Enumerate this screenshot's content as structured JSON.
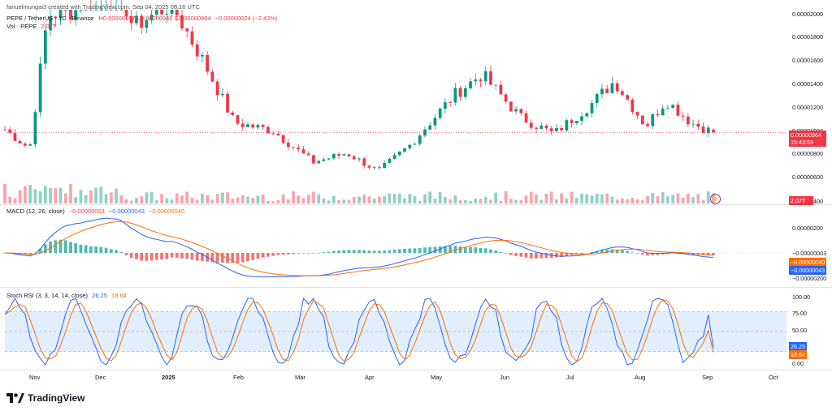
{
  "header": {
    "creator": "fanuelmungai3 created with TradingView.com, Sep 04, 2025 08:16 UTC",
    "symbol": "PEPE / TetherUS · 1D · Binance",
    "ohlc": "H0.00000997 L0.00000946 C0.00000964",
    "change": "−0.00000024 (−2.43%)",
    "volume_label": "Vol · PEPE",
    "volume_value": "2.07T"
  },
  "macd": {
    "label": "MACD (12, 26, close)",
    "hist": "−0.00000003",
    "macd": "−0.00000043",
    "signal": "−0.00000040"
  },
  "stoch": {
    "label": "Stoch RSI (3, 3, 14, 14, close)",
    "k": "26.25",
    "d": "18.64"
  },
  "price_axis": [
    "0.00002000",
    "0.00001800",
    "0.00001600",
    "0.00001400",
    "0.00001200",
    "0.00001000",
    "0.00000800",
    "0.00000600",
    "0.00000400"
  ],
  "price_tag": {
    "price": "0.00000964",
    "countdown": "15:43:59",
    "volume": "2.07T"
  },
  "macd_axis": [
    "0.00000200",
    "−0.00000003",
    "−0.00000040",
    "−0.00000043",
    "−0.00000200"
  ],
  "stoch_axis": [
    "100.00",
    "75.00",
    "50.00",
    "26.25",
    "18.64",
    "0.00"
  ],
  "time_axis": [
    "Nov",
    "Dec",
    "2025",
    "Feb",
    "Mar",
    "Apr",
    "May",
    "Jun",
    "Jul",
    "Aug",
    "Sep",
    "Oct"
  ],
  "brand": "TradingView",
  "colors": {
    "up": "#089981",
    "down": "#f23645",
    "macd": "#2962ff",
    "signal": "#ff6d00",
    "stoch_band": "#e3eefc"
  },
  "chart_data": {
    "type": "candlestick",
    "approx_close_path": [
      [
        "2024-10-24",
        9.9e-06
      ],
      [
        "2024-11-04",
        8.2e-06
      ],
      [
        "2024-11-12",
        2e-05
      ],
      [
        "2024-11-25",
        2.05e-05
      ],
      [
        "2024-12-09",
        2.5e-05
      ],
      [
        "2024-12-20",
        1.9e-05
      ],
      [
        "2025-01-06",
        2.1e-05
      ],
      [
        "2025-01-20",
        1.6e-05
      ],
      [
        "2025-02-03",
        1.05e-05
      ],
      [
        "2025-02-20",
        9.8e-06
      ],
      [
        "2025-03-10",
        7e-06
      ],
      [
        "2025-03-25",
        7.8e-06
      ],
      [
        "2025-04-08",
        6.2e-06
      ],
      [
        "2025-04-22",
        8.5e-06
      ],
      [
        "2025-05-12",
        1.3e-05
      ],
      [
        "2025-05-24",
        1.48e-05
      ],
      [
        "2025-06-10",
        1.1e-05
      ],
      [
        "2025-06-25",
        9.5e-06
      ],
      [
        "2025-07-12",
        1.22e-05
      ],
      [
        "2025-07-22",
        1.42e-05
      ],
      [
        "2025-08-05",
        1.02e-05
      ],
      [
        "2025-08-14",
        1.25e-05
      ],
      [
        "2025-08-25",
        1.05e-05
      ],
      [
        "2025-09-04",
        9.64e-06
      ]
    ]
  }
}
